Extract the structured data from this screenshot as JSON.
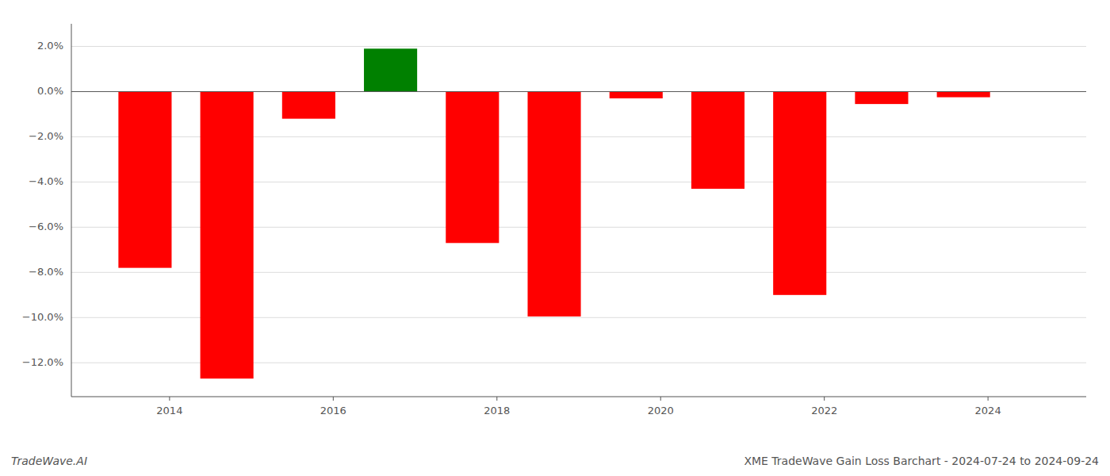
{
  "chart_data": {
    "type": "bar",
    "title": "XME TradeWave Gain Loss Barchart - 2024-07-24 to 2024-09-24",
    "annotations": [
      "TradeWave.AI"
    ],
    "x": [
      2013.7,
      2014.7,
      2015.7,
      2016.7,
      2017.7,
      2018.7,
      2019.7,
      2020.7,
      2021.7,
      2022.7,
      2023.7
    ],
    "values": [
      -0.078,
      -0.127,
      -0.012,
      0.019,
      -0.067,
      -0.0995,
      -0.003,
      -0.043,
      -0.09,
      -0.0055,
      -0.0025
    ],
    "colors": [
      "#ff0000",
      "#ff0000",
      "#ff0000",
      "#008000",
      "#ff0000",
      "#ff0000",
      "#ff0000",
      "#ff0000",
      "#ff0000",
      "#ff0000",
      "#ff0000"
    ],
    "xlim": [
      2012.8,
      2025.2
    ],
    "xticks": [
      2014,
      2016,
      2018,
      2020,
      2022,
      2024
    ],
    "ylim": [
      -0.135,
      0.03
    ],
    "yticks": [
      {
        "value": -0.12,
        "label": "−12.0%"
      },
      {
        "value": -0.1,
        "label": "−10.0%"
      },
      {
        "value": -0.08,
        "label": "−8.0%"
      },
      {
        "value": -0.06,
        "label": "−6.0%"
      },
      {
        "value": -0.04,
        "label": "−4.0%"
      },
      {
        "value": -0.02,
        "label": "−2.0%"
      },
      {
        "value": 0,
        "label": "0.0%"
      },
      {
        "value": 0.02,
        "label": "2.0%"
      }
    ],
    "grid": true
  }
}
